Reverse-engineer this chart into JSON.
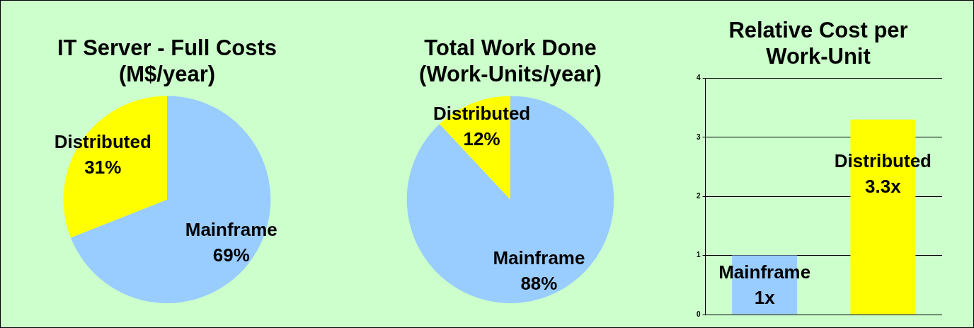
{
  "chart_data": [
    {
      "type": "pie",
      "title": [
        "IT Server - Full Costs",
        "(M$/year)"
      ],
      "categories": [
        "Mainframe",
        "Distributed"
      ],
      "values": [
        69,
        31
      ],
      "colors": [
        "#99ccff",
        "#ffff00"
      ],
      "value_labels": [
        "69%",
        "31%"
      ],
      "legend": false
    },
    {
      "type": "pie",
      "title": [
        "Total Work Done",
        "(Work-Units/year)"
      ],
      "categories": [
        "Mainframe",
        "Distributed"
      ],
      "values": [
        88,
        12
      ],
      "colors": [
        "#99ccff",
        "#ffff00"
      ],
      "value_labels": [
        "88%",
        "12%"
      ],
      "legend": false
    },
    {
      "type": "bar",
      "title": [
        "Relative Cost per",
        "Work-Unit"
      ],
      "categories": [
        "Mainframe",
        "Distributed"
      ],
      "values": [
        1,
        3.3
      ],
      "colors": [
        "#99ccff",
        "#ffff00"
      ],
      "value_labels": [
        "1x",
        "3.3x"
      ],
      "ylim": [
        0,
        4
      ],
      "yticks": [
        0,
        1,
        2,
        3,
        4
      ],
      "grid": "y",
      "tick_labels": "y",
      "legend": false
    }
  ]
}
